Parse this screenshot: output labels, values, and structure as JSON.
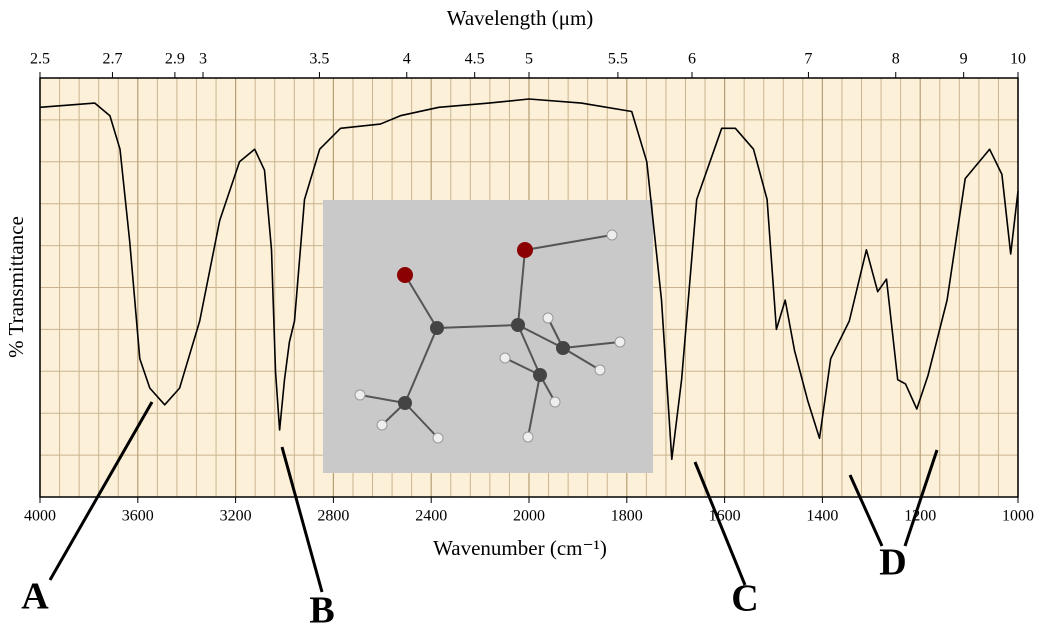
{
  "chart_data": {
    "type": "line",
    "x_label": "Wavenumber (cm⁻¹)",
    "x2_label": "Wavelength (μm)",
    "y_label": "% Transmittance",
    "x": [
      4000,
      3776,
      3714,
      3673,
      3633,
      3592,
      3551,
      3490,
      3429,
      3347,
      3265,
      3184,
      3122,
      3082,
      3053,
      3037,
      3020,
      3000,
      2980,
      2959,
      2918,
      2856,
      2771,
      2608,
      2526,
      2369,
      2164,
      2000,
      1893,
      1790,
      1759,
      1729,
      1708,
      1688,
      1657,
      1606,
      1578,
      1541,
      1513,
      1494,
      1476,
      1457,
      1430,
      1406,
      1383,
      1345,
      1310,
      1287,
      1269,
      1246,
      1230,
      1207,
      1184,
      1145,
      1108,
      1058,
      1033,
      1015,
      1000
    ],
    "values": [
      93,
      94,
      91,
      83,
      61,
      33,
      26,
      22,
      26,
      42,
      66,
      80,
      83,
      78,
      59,
      30,
      16,
      28,
      37,
      42,
      71,
      83,
      88,
      89,
      91,
      93,
      94,
      95,
      94,
      92,
      80,
      47,
      9,
      28,
      71,
      88,
      88,
      83,
      71,
      40,
      47,
      35,
      23,
      14,
      33,
      42,
      59,
      49,
      52,
      28,
      27,
      21,
      29,
      47,
      76,
      83,
      77,
      58,
      73
    ],
    "color": "#000000",
    "xlim": [
      4000,
      1000
    ],
    "xticks": [
      4000,
      3600,
      3200,
      2800,
      2400,
      2000,
      1800,
      1600,
      1400,
      1200,
      1000
    ],
    "x2ticks": [
      2.5,
      2.7,
      2.9,
      3,
      3.5,
      4,
      4.5,
      5,
      5.5,
      6,
      7,
      8,
      9,
      10
    ],
    "ylim": [
      0,
      100
    ],
    "grid": true,
    "annotations": [
      "A",
      "B",
      "C",
      "D"
    ]
  }
}
